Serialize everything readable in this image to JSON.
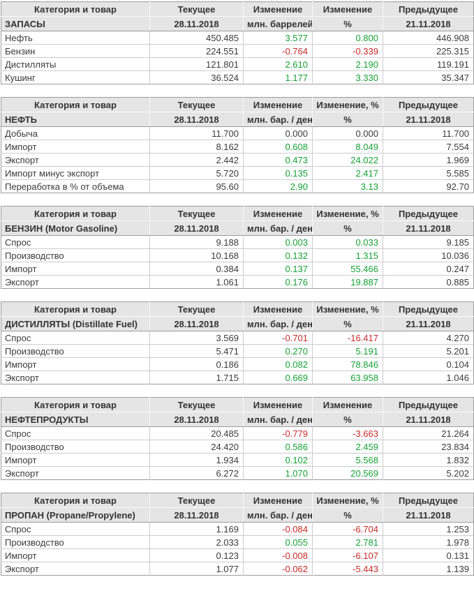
{
  "colors": {
    "positive": "#15a135",
    "negative": "#c82a2a",
    "neutral": "#3a3a3a",
    "header_background": "#e5e5e5",
    "border": "#9c9c9c"
  },
  "chart_data": [
    {
      "type": "table",
      "title": "ЗАПАСЫ",
      "columns": {
        "category": "Категория и товар",
        "current": "Текущее",
        "change": "Изменение",
        "change_pct": "Изменение",
        "previous": "Предыдущее"
      },
      "units": {
        "category": "ЗАПАСЫ",
        "current": "28.11.2018",
        "change": "млн. баррелей",
        "change_pct": "%",
        "previous": "21.11.2018"
      },
      "rows": [
        {
          "label": "Нефть",
          "current": "450.485",
          "change": "3.577",
          "change_dir": "up",
          "change_pct": "0.800",
          "change_pct_dir": "up",
          "previous": "446.908"
        },
        {
          "label": "Бензин",
          "current": "224.551",
          "change": "-0.764",
          "change_dir": "down",
          "change_pct": "-0.339",
          "change_pct_dir": "down",
          "previous": "225.315"
        },
        {
          "label": "Дистилляты",
          "current": "121.801",
          "change": "2.610",
          "change_dir": "up",
          "change_pct": "2.190",
          "change_pct_dir": "up",
          "previous": "119.191"
        },
        {
          "label": "Кушинг",
          "current": "36.524",
          "change": "1.177",
          "change_dir": "up",
          "change_pct": "3.330",
          "change_pct_dir": "up",
          "previous": "35.347"
        }
      ]
    },
    {
      "type": "table",
      "title": "НЕФТЬ",
      "columns": {
        "category": "Категория и товар",
        "current": "Текущее",
        "change": "Изменение",
        "change_pct": "Изменение, %",
        "previous": "Предыдущее"
      },
      "units": {
        "category": "НЕФТЬ",
        "current": "28.11.2018",
        "change": "млн. бар. / день",
        "change_pct": "%",
        "previous": "21.11.2018"
      },
      "rows": [
        {
          "label": "Добыча",
          "current": "11.700",
          "change": "0.000",
          "change_dir": "flat",
          "change_pct": "0.000",
          "change_pct_dir": "flat",
          "previous": "11.700"
        },
        {
          "label": "Импорт",
          "current": "8.162",
          "change": "0.608",
          "change_dir": "up",
          "change_pct": "8.049",
          "change_pct_dir": "up",
          "previous": "7.554"
        },
        {
          "label": "Экспорт",
          "current": "2.442",
          "change": "0.473",
          "change_dir": "up",
          "change_pct": "24.022",
          "change_pct_dir": "up",
          "previous": "1.969"
        },
        {
          "label": "Импорт минус экспорт",
          "current": "5.720",
          "change": "0.135",
          "change_dir": "up",
          "change_pct": "2.417",
          "change_pct_dir": "up",
          "previous": "5.585"
        },
        {
          "label": "Переработка в % от объема",
          "current": "95.60",
          "change": "2.90",
          "change_dir": "up",
          "change_pct": "3.13",
          "change_pct_dir": "up",
          "previous": "92.70"
        }
      ]
    },
    {
      "type": "table",
      "title": "БЕНЗИН (Motor Gasoline)",
      "columns": {
        "category": "Категория и товар",
        "current": "Текущее",
        "change": "Изменение",
        "change_pct": "Изменение, %",
        "previous": "Предыдущее"
      },
      "units": {
        "category": "БЕНЗИН (Motor Gasoline)",
        "current": "28.11.2018",
        "change": "млн. бар. / день",
        "change_pct": "%",
        "previous": "21.11.2018"
      },
      "rows": [
        {
          "label": "Спрос",
          "current": "9.188",
          "change": "0.003",
          "change_dir": "up",
          "change_pct": "0.033",
          "change_pct_dir": "up",
          "previous": "9.185"
        },
        {
          "label": "Производство",
          "current": "10.168",
          "change": "0.132",
          "change_dir": "up",
          "change_pct": "1.315",
          "change_pct_dir": "up",
          "previous": "10.036"
        },
        {
          "label": "Импорт",
          "current": "0.384",
          "change": "0.137",
          "change_dir": "up",
          "change_pct": "55.466",
          "change_pct_dir": "up",
          "previous": "0.247"
        },
        {
          "label": "Экспорт",
          "current": "1.061",
          "change": "0.176",
          "change_dir": "up",
          "change_pct": "19.887",
          "change_pct_dir": "up",
          "previous": "0.885"
        }
      ]
    },
    {
      "type": "table",
      "title": "ДИСТИЛЛЯТЫ (Distillate Fuel)",
      "columns": {
        "category": "Категория и товар",
        "current": "Текущее",
        "change": "Изменение",
        "change_pct": "Изменение, %",
        "previous": "Предыдущее"
      },
      "units": {
        "category": "ДИСТИЛЛЯТЫ (Distillate Fuel)",
        "current": "28.11.2018",
        "change": "млн. бар. / день",
        "change_pct": "%",
        "previous": "21.11.2018"
      },
      "rows": [
        {
          "label": "Спрос",
          "current": "3.569",
          "change": "-0.701",
          "change_dir": "down",
          "change_pct": "-16.417",
          "change_pct_dir": "down",
          "previous": "4.270"
        },
        {
          "label": "Производство",
          "current": "5.471",
          "change": "0.270",
          "change_dir": "up",
          "change_pct": "5.191",
          "change_pct_dir": "up",
          "previous": "5.201"
        },
        {
          "label": "Импорт",
          "current": "0.186",
          "change": "0.082",
          "change_dir": "up",
          "change_pct": "78.846",
          "change_pct_dir": "up",
          "previous": "0.104"
        },
        {
          "label": "Экспорт",
          "current": "1.715",
          "change": "0.669",
          "change_dir": "up",
          "change_pct": "63.958",
          "change_pct_dir": "up",
          "previous": "1.046"
        }
      ]
    },
    {
      "type": "table",
      "title": "НЕФТЕПРОДУКТЫ",
      "columns": {
        "category": "Категория и товар",
        "current": "Текущее",
        "change": "Изменение",
        "change_pct": "Изменение",
        "previous": "Предыдущее"
      },
      "units": {
        "category": "НЕФТЕПРОДУКТЫ",
        "current": "28.11.2018",
        "change": "млн. бар. / день",
        "change_pct": "%",
        "previous": "21.11.2018"
      },
      "rows": [
        {
          "label": "Спрос",
          "current": "20.485",
          "change": "-0.779",
          "change_dir": "down",
          "change_pct": "-3.663",
          "change_pct_dir": "down",
          "previous": "21.264"
        },
        {
          "label": "Производство",
          "current": "24.420",
          "change": "0.586",
          "change_dir": "up",
          "change_pct": "2.459",
          "change_pct_dir": "up",
          "previous": "23.834"
        },
        {
          "label": "Импорт",
          "current": "1.934",
          "change": "0.102",
          "change_dir": "up",
          "change_pct": "5.568",
          "change_pct_dir": "up",
          "previous": "1.832"
        },
        {
          "label": "Экспорт",
          "current": "6.272",
          "change": "1.070",
          "change_dir": "up",
          "change_pct": "20.569",
          "change_pct_dir": "up",
          "previous": "5.202"
        }
      ]
    },
    {
      "type": "table",
      "title": "ПРОПАН (Propane/Propylene)",
      "columns": {
        "category": "Категория и товар",
        "current": "Текущее",
        "change": "Изменение",
        "change_pct": "Изменение, %",
        "previous": "Предыдущее"
      },
      "units": {
        "category": "ПРОПАН (Propane/Propylene)",
        "current": "28.11.2018",
        "change": "млн. бар. / день",
        "change_pct": "%",
        "previous": "21.11.2018"
      },
      "rows": [
        {
          "label": "Спрос",
          "current": "1.169",
          "change": "-0.084",
          "change_dir": "down",
          "change_pct": "-6.704",
          "change_pct_dir": "down",
          "previous": "1.253"
        },
        {
          "label": "Производство",
          "current": "2.033",
          "change": "0.055",
          "change_dir": "up",
          "change_pct": "2.781",
          "change_pct_dir": "up",
          "previous": "1.978"
        },
        {
          "label": "Импорт",
          "current": "0.123",
          "change": "-0.008",
          "change_dir": "down",
          "change_pct": "-6.107",
          "change_pct_dir": "down",
          "previous": "0.131"
        },
        {
          "label": "Экспорт",
          "current": "1.077",
          "change": "-0.062",
          "change_dir": "down",
          "change_pct": "-5.443",
          "change_pct_dir": "down",
          "previous": "1.139"
        }
      ]
    }
  ]
}
